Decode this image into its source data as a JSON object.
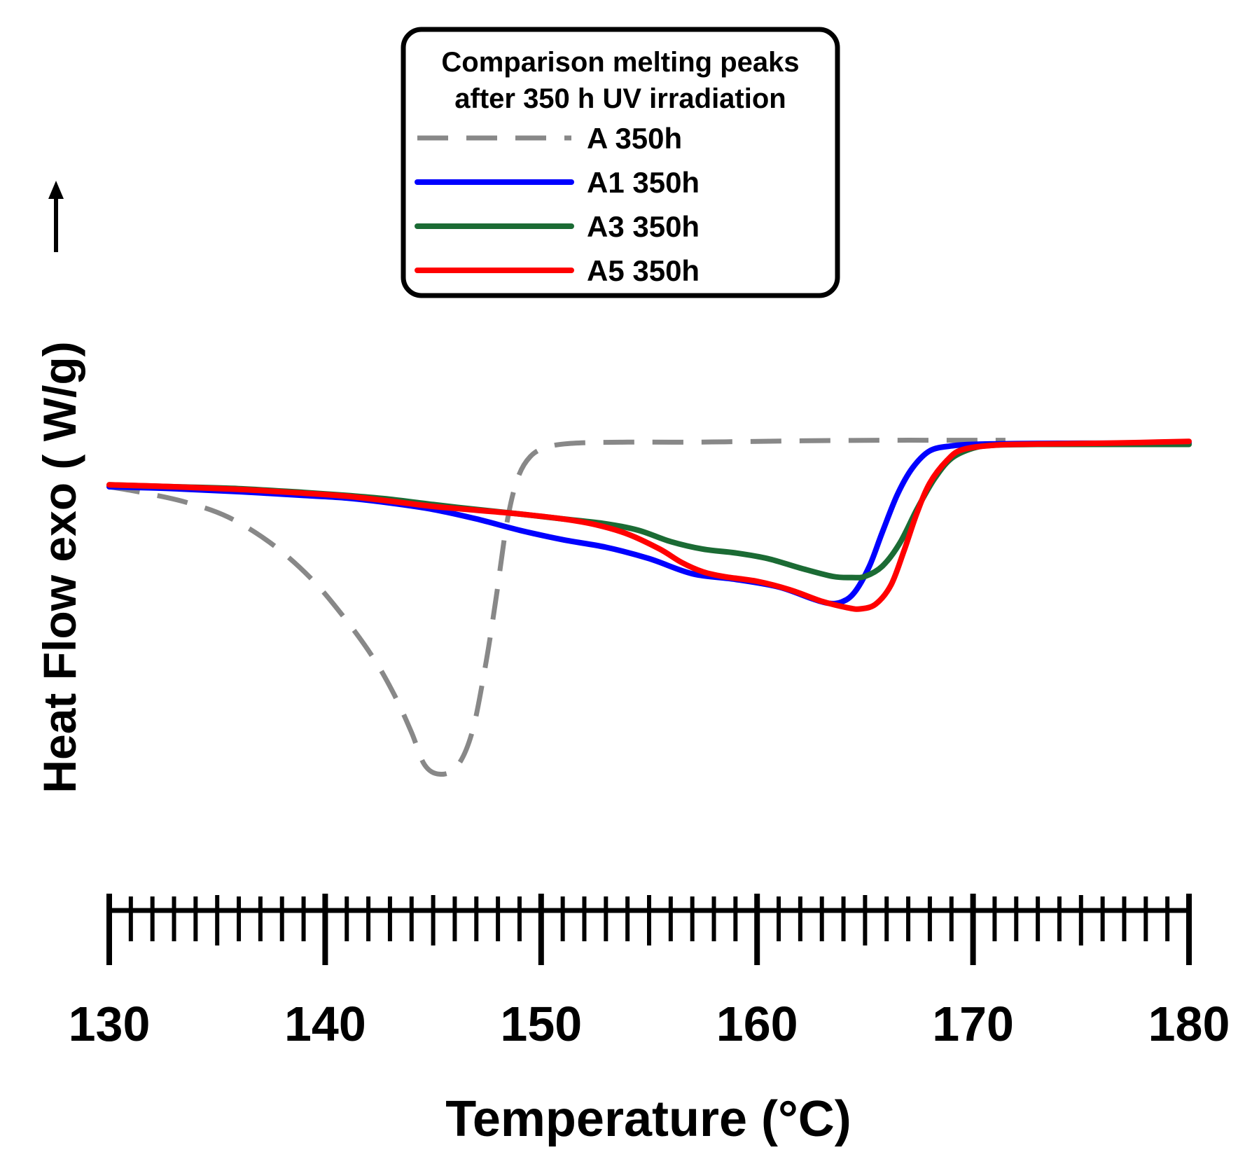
{
  "chart_data": {
    "type": "line",
    "title": "",
    "xlabel": "Temperature  (°C)",
    "ylabel": "Heat Flow  exo ( W/g)",
    "y_direction_arrow": "up",
    "xlim": [
      130,
      180
    ],
    "ylim": [
      0,
      1
    ],
    "x_ticks": [
      130,
      140,
      150,
      160,
      170,
      180
    ],
    "x_minor_tick_step": 1,
    "y_ticks_shown": false,
    "grid": false,
    "legend": {
      "title_lines": [
        "Comparison melting peaks",
        "after 350 h UV irradiation"
      ],
      "placement": "top-center"
    },
    "series": [
      {
        "name": "A 350h",
        "color": "#888888",
        "style": "dashed",
        "points": [
          [
            130,
            0.75
          ],
          [
            131.5,
            0.735
          ],
          [
            133.5,
            0.71
          ],
          [
            135.5,
            0.67
          ],
          [
            137.5,
            0.6
          ],
          [
            139.3,
            0.51
          ],
          [
            140.8,
            0.41
          ],
          [
            142.2,
            0.3
          ],
          [
            143.2,
            0.2
          ],
          [
            144.0,
            0.1
          ],
          [
            144.6,
            0.015
          ],
          [
            145.3,
            -0.01
          ],
          [
            146.1,
            0.01
          ],
          [
            146.8,
            0.1
          ],
          [
            147.4,
            0.27
          ],
          [
            147.9,
            0.45
          ],
          [
            148.4,
            0.65
          ],
          [
            148.9,
            0.77
          ],
          [
            149.5,
            0.83
          ],
          [
            150.3,
            0.855
          ],
          [
            151.5,
            0.865
          ],
          [
            154,
            0.868
          ],
          [
            157,
            0.868
          ],
          [
            160,
            0.87
          ],
          [
            163,
            0.872
          ],
          [
            166,
            0.873
          ],
          [
            169,
            0.873
          ],
          [
            171.5,
            0.873
          ]
        ]
      },
      {
        "name": "A1 350h",
        "color": "#0000ff",
        "style": "solid",
        "points": [
          [
            130,
            0.75
          ],
          [
            133,
            0.745
          ],
          [
            136,
            0.737
          ],
          [
            139,
            0.727
          ],
          [
            141,
            0.72
          ],
          [
            143,
            0.707
          ],
          [
            145,
            0.69
          ],
          [
            147,
            0.665
          ],
          [
            149,
            0.635
          ],
          [
            151,
            0.61
          ],
          [
            153,
            0.59
          ],
          [
            155,
            0.56
          ],
          [
            157,
            0.52
          ],
          [
            159,
            0.505
          ],
          [
            161,
            0.485
          ],
          [
            162.5,
            0.455
          ],
          [
            163.3,
            0.442
          ],
          [
            163.9,
            0.445
          ],
          [
            164.5,
            0.47
          ],
          [
            165.2,
            0.54
          ],
          [
            165.8,
            0.63
          ],
          [
            166.5,
            0.73
          ],
          [
            167.2,
            0.8
          ],
          [
            168,
            0.845
          ],
          [
            169,
            0.858
          ],
          [
            170,
            0.862
          ],
          [
            172,
            0.864
          ],
          [
            175,
            0.865
          ],
          [
            178,
            0.865
          ],
          [
            180,
            0.866
          ]
        ]
      },
      {
        "name": "A3 350h",
        "color": "#1b6b34",
        "style": "solid",
        "points": [
          [
            130,
            0.755
          ],
          [
            133,
            0.75
          ],
          [
            136,
            0.745
          ],
          [
            139,
            0.735
          ],
          [
            141,
            0.727
          ],
          [
            143,
            0.717
          ],
          [
            145,
            0.703
          ],
          [
            147,
            0.69
          ],
          [
            149,
            0.678
          ],
          [
            151,
            0.665
          ],
          [
            153,
            0.652
          ],
          [
            154.5,
            0.635
          ],
          [
            156,
            0.605
          ],
          [
            157.5,
            0.585
          ],
          [
            159,
            0.575
          ],
          [
            160.5,
            0.56
          ],
          [
            162,
            0.535
          ],
          [
            163.5,
            0.513
          ],
          [
            164.4,
            0.51
          ],
          [
            165,
            0.513
          ],
          [
            165.8,
            0.54
          ],
          [
            166.6,
            0.6
          ],
          [
            167.4,
            0.69
          ],
          [
            168.2,
            0.77
          ],
          [
            169,
            0.825
          ],
          [
            170,
            0.852
          ],
          [
            171,
            0.86
          ],
          [
            173,
            0.862
          ],
          [
            176,
            0.862
          ],
          [
            180,
            0.862
          ]
        ]
      },
      {
        "name": "A5 350h",
        "color": "#ff0000",
        "style": "solid",
        "points": [
          [
            130,
            0.755
          ],
          [
            133,
            0.75
          ],
          [
            136,
            0.743
          ],
          [
            139,
            0.733
          ],
          [
            141,
            0.725
          ],
          [
            143,
            0.712
          ],
          [
            145,
            0.698
          ],
          [
            147,
            0.688
          ],
          [
            149,
            0.678
          ],
          [
            151,
            0.665
          ],
          [
            152.5,
            0.65
          ],
          [
            154,
            0.625
          ],
          [
            155.5,
            0.585
          ],
          [
            156.5,
            0.55
          ],
          [
            157.5,
            0.525
          ],
          [
            158.5,
            0.512
          ],
          [
            160,
            0.5
          ],
          [
            161.5,
            0.478
          ],
          [
            163,
            0.447
          ],
          [
            164.2,
            0.43
          ],
          [
            164.8,
            0.427
          ],
          [
            165.5,
            0.44
          ],
          [
            166.2,
            0.49
          ],
          [
            166.8,
            0.58
          ],
          [
            167.4,
            0.68
          ],
          [
            168,
            0.76
          ],
          [
            168.8,
            0.82
          ],
          [
            169.5,
            0.848
          ],
          [
            171,
            0.86
          ],
          [
            173,
            0.863
          ],
          [
            176,
            0.865
          ],
          [
            180,
            0.87
          ]
        ]
      }
    ]
  }
}
